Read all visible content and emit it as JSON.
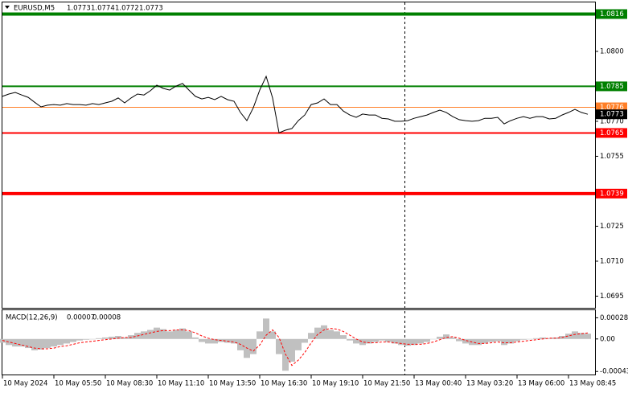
{
  "chart_data": [
    {
      "type": "line",
      "title": "EURUSD,M5",
      "ohlc": [
        1.0773,
        1.0774,
        1.0772,
        1.0773
      ],
      "x": [
        0,
        4,
        8,
        12,
        16,
        20,
        24,
        28,
        32,
        36,
        40,
        44,
        48,
        52,
        56,
        60,
        64,
        68,
        72,
        76,
        80,
        84,
        88,
        92,
        96,
        100,
        104,
        108,
        112,
        116,
        120,
        124,
        128,
        132,
        136,
        140,
        144,
        148,
        152,
        156,
        160,
        164,
        168,
        172,
        176,
        180,
        184,
        188,
        192,
        196,
        200,
        204,
        208,
        212,
        216,
        220,
        224,
        228,
        232,
        236,
        240,
        244,
        248,
        252,
        256,
        260,
        264,
        268,
        272,
        276,
        280,
        284,
        288,
        292,
        296,
        300,
        304,
        308,
        312,
        316,
        320,
        324,
        328,
        332,
        336,
        340,
        344,
        348,
        352,
        356,
        360,
        364
      ],
      "series": [
        {
          "color": "#000000",
          "values": [
            1.07807,
            1.07817,
            1.07824,
            1.07813,
            1.07803,
            1.07782,
            1.07762,
            1.07769,
            1.07772,
            1.07769,
            1.07776,
            1.07772,
            1.07772,
            1.07769,
            1.07776,
            1.07772,
            1.07779,
            1.07786,
            1.078,
            1.07779,
            1.078,
            1.07817,
            1.07813,
            1.07831,
            1.07855,
            1.07841,
            1.07834,
            1.07851,
            1.07862,
            1.07834,
            1.07807,
            1.07796,
            1.07803,
            1.07793,
            1.07807,
            1.07793,
            1.07786,
            1.07738,
            1.07703,
            1.07758,
            1.07834,
            1.07893,
            1.078,
            1.07651,
            1.07662,
            1.07669,
            1.07703,
            1.07727,
            1.07772,
            1.07779,
            1.07796,
            1.07772,
            1.07772,
            1.07744,
            1.07727,
            1.07717,
            1.07731,
            1.07727,
            1.07727,
            1.07713,
            1.0771,
            1.077,
            1.077,
            1.07703,
            1.07713,
            1.0772,
            1.07727,
            1.07738,
            1.07748,
            1.07738,
            1.0772,
            1.07707,
            1.07703,
            1.077,
            1.07703,
            1.07713,
            1.07713,
            1.07717,
            1.07689,
            1.07703,
            1.07713,
            1.0772,
            1.07713,
            1.0772,
            1.0772,
            1.0771,
            1.07713,
            1.07727,
            1.07738,
            1.07751,
            1.07738,
            1.0773
          ]
        }
      ],
      "xlim": [
        0,
        368.5
      ],
      "xticks": [
        {
          "value": 0,
          "label": "10 May 2024"
        },
        {
          "value": 32,
          "label": "10 May 05:50"
        },
        {
          "value": 64,
          "label": "10 May 08:30"
        },
        {
          "value": 96,
          "label": "10 May 11:10"
        },
        {
          "value": 128,
          "label": "10 May 13:50"
        },
        {
          "value": 160,
          "label": "10 May 16:30"
        },
        {
          "value": 192,
          "label": "10 May 19:10"
        },
        {
          "value": 224,
          "label": "10 May 21:50"
        },
        {
          "value": 256,
          "label": "13 May 00:40"
        },
        {
          "value": 288,
          "label": "13 May 03:20"
        },
        {
          "value": 320,
          "label": "13 May 06:00"
        },
        {
          "value": 352,
          "label": "13 May 08:45"
        }
      ],
      "ylim": [
        1.069,
        1.0821
      ],
      "yticks": [
        1.0695,
        {
          "value": 1.071,
          "label": "1.0710"
        },
        1.0725,
        1.0755,
        {
          "value": 1.077,
          "label": "1.0770"
        },
        {
          "value": 1.08,
          "label": "1.0800"
        }
      ],
      "levels": [
        {
          "value": 1.0816,
          "color": "#008000"
        },
        {
          "value": 1.0785,
          "color": "#008000"
        },
        {
          "value": 1.0776,
          "color": "#ff7f27"
        },
        {
          "value": 1.0765,
          "color": "#ff0000"
        },
        {
          "value": 1.0739,
          "color": "#ff0000"
        }
      ],
      "price_tag": 1.0773,
      "grid": false
    },
    {
      "type": "macd",
      "title": "MACD(12,26,9)",
      "last_values": [
        7e-05,
        8e-05
      ],
      "series": [
        {
          "kind": "histogram",
          "color": "#c0c0c0",
          "values": [
            -5e-05,
            -8e-05,
            -0.0001,
            -0.0001,
            -0.00012,
            -0.00015,
            -0.00014,
            -0.00012,
            -0.0001,
            -8e-05,
            -6e-05,
            -4e-05,
            -2e-05,
            -1e-05,
            0,
            1e-05,
            2e-05,
            3e-05,
            4e-05,
            2e-05,
            5e-05,
            8e-05,
            0.0001,
            0.00012,
            0.00015,
            0.00013,
            0.0001,
            0.00012,
            0.00014,
            0.0001,
            2e-05,
            -4e-05,
            -6e-05,
            -6e-05,
            -4e-05,
            -5e-05,
            -6e-05,
            -0.00015,
            -0.00025,
            -0.0002,
            0.0001,
            0.00027,
            0.0001,
            -0.0002,
            -0.00042,
            -0.0003,
            -0.00015,
            -5e-05,
            8e-05,
            0.00015,
            0.00018,
            0.00012,
            0.0001,
            5e-05,
            -2e-05,
            -6e-05,
            -8e-05,
            -6e-05,
            -4e-05,
            -2e-05,
            -4e-05,
            -6e-05,
            -8e-05,
            -9e-05,
            -8e-05,
            -6e-05,
            -4e-05,
            0,
            3e-05,
            6e-05,
            2e-05,
            -3e-05,
            -6e-05,
            -8e-05,
            -8e-05,
            -6e-05,
            -4e-05,
            -3e-05,
            -8e-05,
            -6e-05,
            -3e-05,
            -1e-05,
            0,
            1e-05,
            2e-05,
            1e-05,
            2e-05,
            4e-05,
            7e-05,
            0.0001,
            8e-05,
            7e-05
          ]
        },
        {
          "kind": "dashed-line",
          "color": "#ff0000",
          "values": [
            -2e-05,
            -4e-05,
            -6e-05,
            -8e-05,
            -0.0001,
            -0.00012,
            -0.00013,
            -0.00013,
            -0.00012,
            -0.0001,
            -9e-05,
            -7e-05,
            -5e-05,
            -4e-05,
            -3e-05,
            -2e-05,
            -1e-05,
            0,
            1e-05,
            2e-05,
            2e-05,
            4e-05,
            6e-05,
            8e-05,
            0.0001,
            0.00011,
            0.00011,
            0.00012,
            0.00012,
            0.00011,
            8e-05,
            4e-05,
            1e-05,
            -1e-05,
            -2e-05,
            -3e-05,
            -4e-05,
            -7e-05,
            -0.00012,
            -0.00016,
            -8e-05,
            5e-05,
            0.00012,
            2e-05,
            -0.0002,
            -0.00035,
            -0.00028,
            -0.00018,
            -5e-05,
            6e-05,
            0.00012,
            0.00014,
            0.00013,
            0.0001,
            5e-05,
            0,
            -4e-05,
            -5e-05,
            -5e-05,
            -4e-05,
            -4e-05,
            -5e-05,
            -6e-05,
            -7e-05,
            -7e-05,
            -7e-05,
            -6e-05,
            -4e-05,
            -1e-05,
            2e-05,
            3e-05,
            1e-05,
            -2e-05,
            -4e-05,
            -6e-05,
            -6e-05,
            -5e-05,
            -4e-05,
            -5e-05,
            -5e-05,
            -4e-05,
            -3e-05,
            -2e-05,
            -1e-05,
            0,
            1e-05,
            1e-05,
            2e-05,
            4e-05,
            6e-05,
            7e-05,
            8e-05
          ]
        }
      ],
      "ylim": [
        -0.00047,
        0.00038
      ],
      "yticks": [
        -0.00043,
        {
          "value": 0,
          "label": "0.00"
        },
        0.00028
      ]
    }
  ]
}
